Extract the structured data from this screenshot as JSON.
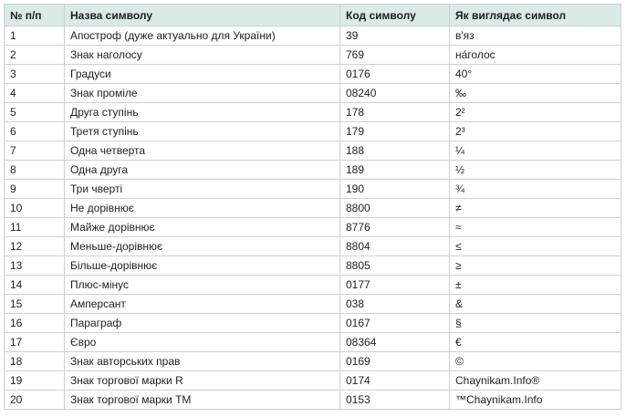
{
  "table": {
    "headers": [
      "№ п/п",
      "Назва символу",
      "Код символу",
      "Як виглядає символ"
    ],
    "rows": [
      {
        "num": "1",
        "name": "Апостроф (дуже актуально для України)",
        "code": "39",
        "symbol": "в'яз"
      },
      {
        "num": "2",
        "name": "Знак наголосу",
        "code": "769",
        "symbol": "на́голос"
      },
      {
        "num": "3",
        "name": "Градуси",
        "code": "0176",
        "symbol": "40°"
      },
      {
        "num": "4",
        "name": "Знак проміле",
        "code": "08240",
        "symbol": "‰"
      },
      {
        "num": "5",
        "name": "Друга ступінь",
        "code": "178",
        "symbol": "2²"
      },
      {
        "num": "6",
        "name": "Третя ступінь",
        "code": "179",
        "symbol": "2³"
      },
      {
        "num": "7",
        "name": "Одна четверта",
        "code": "188",
        "symbol": "¼"
      },
      {
        "num": "8",
        "name": "Одна друга",
        "code": "189",
        "symbol": "½"
      },
      {
        "num": "9",
        "name": "Три чверті",
        "code": "190",
        "symbol": "¾"
      },
      {
        "num": "10",
        "name": "Не дорівнює",
        "code": "8800",
        "symbol": "≠"
      },
      {
        "num": "11",
        "name": "Майже дорівнює",
        "code": "8776",
        "symbol": "≈"
      },
      {
        "num": "12",
        "name": "Меньше-дорівнює",
        "code": "8804",
        "symbol": "≤"
      },
      {
        "num": "13",
        "name": "Більше-дорівнює",
        "code": "8805",
        "symbol": "≥"
      },
      {
        "num": "14",
        "name": "Плюс-мінус",
        "code": "0177",
        "symbol": "±"
      },
      {
        "num": "15",
        "name": "Амперсант",
        "code": "038",
        "symbol": "&"
      },
      {
        "num": "16",
        "name": "Параграф",
        "code": "0167",
        "symbol": "§"
      },
      {
        "num": "17",
        "name": "Євро",
        "code": "08364",
        "symbol": "€"
      },
      {
        "num": "18",
        "name": "Знак авторських прав",
        "code": "0169",
        "symbol": "©"
      },
      {
        "num": "19",
        "name": "Знак торгової марки R",
        "code": "0174",
        "symbol": "Chaynikam.Info®"
      },
      {
        "num": "20",
        "name": "Знак торгової марки TM",
        "code": "0153",
        "symbol": "™Chaynikam.Info"
      }
    ]
  },
  "colors": {
    "header_background": "#d9eae8",
    "border": "#c9d4d1",
    "text": "#222222"
  }
}
